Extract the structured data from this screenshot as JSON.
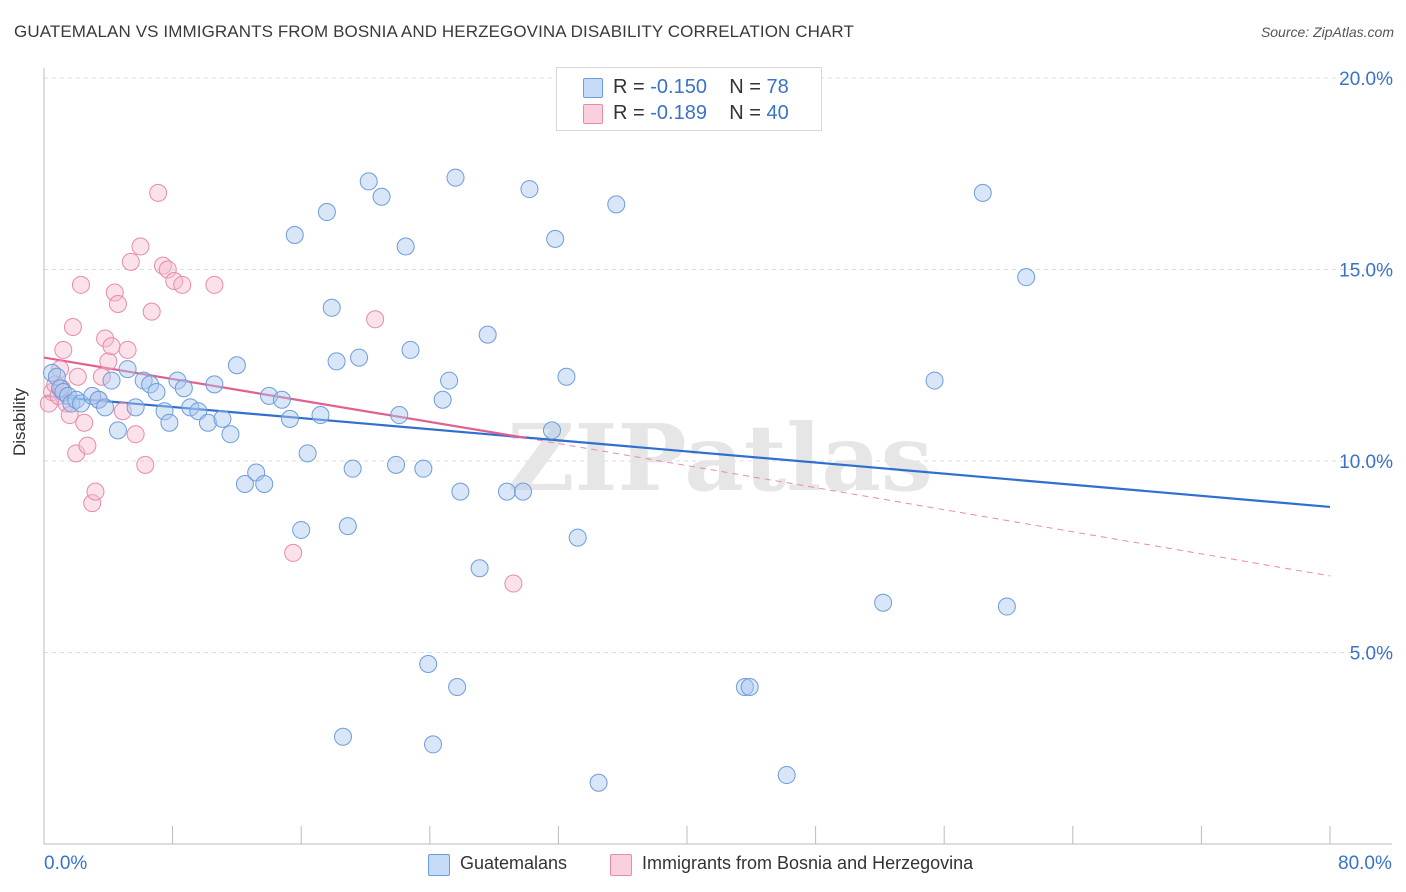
{
  "title": "GUATEMALAN VS IMMIGRANTS FROM BOSNIA AND HERZEGOVINA DISABILITY CORRELATION CHART",
  "source": "Source: ZipAtlas.com",
  "watermark": "ZIPatlas",
  "legend": {
    "r_label": "R =",
    "n_label": "N =",
    "rows": [
      {
        "r": "-0.150",
        "n": "78",
        "color": "#a9c8f0",
        "border": "#6d9ddc"
      },
      {
        "r": "-0.189",
        "n": "40",
        "color": "#f7bcd0",
        "border": "#e88aab"
      }
    ]
  },
  "bottom_legend": [
    "Guatemalans",
    "Immigrants from Bosnia and Herzegovina"
  ],
  "chart_data": {
    "type": "scatter",
    "xlabel": "",
    "ylabel": "Disability",
    "xlim": [
      0,
      80
    ],
    "ylim": [
      0,
      20
    ],
    "x_tick_labels": [
      "0.0%",
      "80.0%"
    ],
    "y_ticks": [
      5,
      10,
      15,
      20
    ],
    "y_tick_labels": [
      "5.0%",
      "10.0%",
      "15.0%",
      "20.0%"
    ],
    "grid": true,
    "series": [
      {
        "name": "Guatemalans",
        "color": "#6d9ddc",
        "fill": "rgba(169,200,240,0.45)",
        "trend": {
          "x": [
            0,
            80
          ],
          "y": [
            11.7,
            8.8
          ],
          "color": "#2f6fcf"
        },
        "points": [
          [
            0.5,
            12.3
          ],
          [
            0.8,
            12.2
          ],
          [
            1.0,
            11.9
          ],
          [
            1.2,
            11.8
          ],
          [
            1.5,
            11.7
          ],
          [
            1.7,
            11.5
          ],
          [
            2.0,
            11.6
          ],
          [
            2.3,
            11.5
          ],
          [
            3.0,
            11.7
          ],
          [
            3.4,
            11.6
          ],
          [
            3.8,
            11.4
          ],
          [
            4.2,
            12.1
          ],
          [
            4.6,
            10.8
          ],
          [
            5.2,
            12.4
          ],
          [
            5.7,
            11.4
          ],
          [
            6.2,
            12.1
          ],
          [
            6.6,
            12.0
          ],
          [
            7.0,
            11.8
          ],
          [
            7.5,
            11.3
          ],
          [
            7.8,
            11.0
          ],
          [
            8.3,
            12.1
          ],
          [
            8.7,
            11.9
          ],
          [
            9.1,
            11.4
          ],
          [
            9.6,
            11.3
          ],
          [
            10.2,
            11.0
          ],
          [
            10.6,
            12.0
          ],
          [
            11.1,
            11.1
          ],
          [
            11.6,
            10.7
          ],
          [
            12.0,
            12.5
          ],
          [
            12.5,
            9.4
          ],
          [
            13.2,
            9.7
          ],
          [
            13.7,
            9.4
          ],
          [
            14.0,
            11.7
          ],
          [
            14.8,
            11.6
          ],
          [
            15.3,
            11.1
          ],
          [
            15.6,
            15.9
          ],
          [
            16.0,
            8.2
          ],
          [
            16.4,
            10.2
          ],
          [
            17.2,
            11.2
          ],
          [
            17.6,
            16.5
          ],
          [
            17.9,
            14.0
          ],
          [
            18.2,
            12.6
          ],
          [
            18.6,
            2.8
          ],
          [
            18.9,
            8.3
          ],
          [
            19.2,
            9.8
          ],
          [
            19.6,
            12.7
          ],
          [
            20.2,
            17.3
          ],
          [
            21.0,
            16.9
          ],
          [
            21.9,
            9.9
          ],
          [
            22.1,
            11.2
          ],
          [
            22.5,
            15.6
          ],
          [
            22.8,
            12.9
          ],
          [
            23.6,
            9.8
          ],
          [
            23.9,
            4.7
          ],
          [
            24.2,
            2.6
          ],
          [
            24.8,
            11.6
          ],
          [
            25.2,
            12.1
          ],
          [
            25.7,
            4.1
          ],
          [
            25.9,
            9.2
          ],
          [
            25.6,
            17.4
          ],
          [
            27.1,
            7.2
          ],
          [
            27.6,
            13.3
          ],
          [
            28.8,
            9.2
          ],
          [
            29.8,
            9.2
          ],
          [
            30.2,
            17.1
          ],
          [
            31.6,
            10.8
          ],
          [
            31.8,
            15.8
          ],
          [
            32.5,
            12.2
          ],
          [
            33.2,
            8.0
          ],
          [
            34.5,
            1.6
          ],
          [
            35.6,
            16.7
          ],
          [
            43.6,
            4.1
          ],
          [
            43.9,
            4.1
          ],
          [
            46.2,
            1.8
          ],
          [
            52.2,
            6.3
          ],
          [
            55.4,
            12.1
          ],
          [
            58.4,
            17.0
          ],
          [
            59.9,
            6.2
          ],
          [
            61.1,
            14.8
          ]
        ]
      },
      {
        "name": "Immigrants from Bosnia and Herzegovina",
        "color": "#e88aab",
        "fill": "rgba(247,188,208,0.45)",
        "trend": {
          "x": [
            0,
            30
          ],
          "y": [
            12.7,
            10.6
          ],
          "color": "#e0608f"
        },
        "trend_ext": {
          "x": [
            30,
            80
          ],
          "y": [
            10.6,
            7.0
          ]
        },
        "points": [
          [
            0.3,
            11.5
          ],
          [
            0.5,
            11.8
          ],
          [
            0.7,
            12.0
          ],
          [
            0.9,
            11.7
          ],
          [
            1.0,
            12.4
          ],
          [
            1.1,
            11.9
          ],
          [
            1.2,
            12.9
          ],
          [
            1.4,
            11.5
          ],
          [
            1.6,
            11.2
          ],
          [
            1.8,
            13.5
          ],
          [
            2.0,
            10.2
          ],
          [
            2.1,
            12.2
          ],
          [
            2.3,
            14.6
          ],
          [
            2.5,
            11.0
          ],
          [
            2.7,
            10.4
          ],
          [
            3.0,
            8.9
          ],
          [
            3.2,
            9.2
          ],
          [
            3.4,
            11.6
          ],
          [
            3.6,
            12.2
          ],
          [
            3.8,
            13.2
          ],
          [
            4.0,
            12.6
          ],
          [
            4.2,
            13.0
          ],
          [
            4.4,
            14.4
          ],
          [
            4.6,
            14.1
          ],
          [
            4.9,
            11.3
          ],
          [
            5.2,
            12.9
          ],
          [
            5.4,
            15.2
          ],
          [
            5.7,
            10.7
          ],
          [
            6.0,
            15.6
          ],
          [
            6.3,
            9.9
          ],
          [
            6.7,
            13.9
          ],
          [
            7.1,
            17.0
          ],
          [
            7.4,
            15.1
          ],
          [
            7.7,
            15.0
          ],
          [
            8.1,
            14.7
          ],
          [
            8.6,
            14.6
          ],
          [
            10.6,
            14.6
          ],
          [
            15.5,
            7.6
          ],
          [
            20.6,
            13.7
          ],
          [
            29.2,
            6.8
          ]
        ]
      }
    ]
  }
}
